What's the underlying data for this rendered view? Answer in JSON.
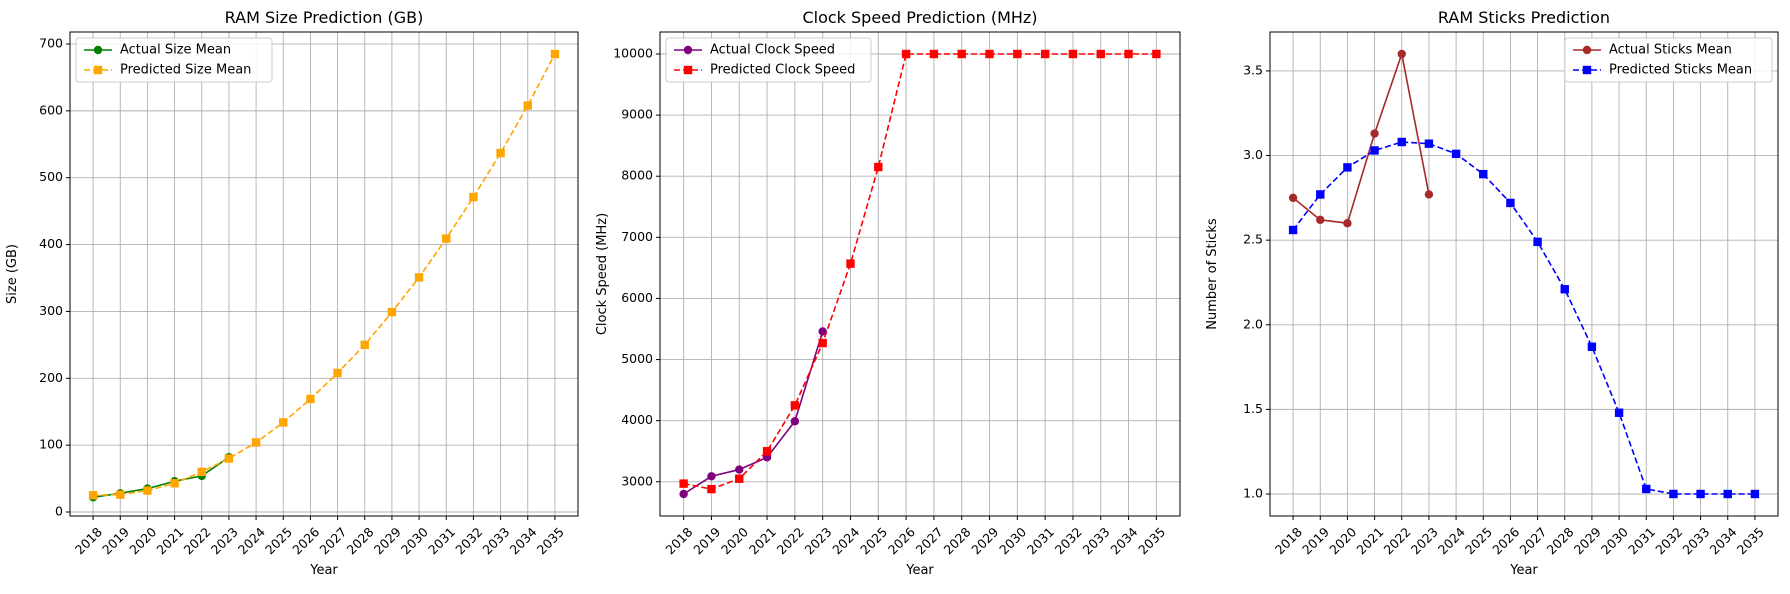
{
  "chart_data": [
    {
      "type": "line",
      "title": "RAM Size Prediction (GB)",
      "xlabel": "Year",
      "ylabel": "Size (GB)",
      "x_ticks": [
        2018,
        2019,
        2020,
        2021,
        2022,
        2023,
        2024,
        2025,
        2026,
        2027,
        2028,
        2029,
        2030,
        2031,
        2032,
        2033,
        2034,
        2035
      ],
      "y_ticks": [
        0,
        100,
        200,
        300,
        400,
        500,
        600,
        700
      ],
      "xlim": [
        2017.15,
        2035.85
      ],
      "ylim": [
        -6,
        718
      ],
      "grid": true,
      "legend_position": "upper-left",
      "series": [
        {
          "name": "Actual Size Mean",
          "color": "#008000",
          "linestyle": "solid",
          "marker": "circle",
          "x": [
            2018,
            2019,
            2020,
            2021,
            2022,
            2023
          ],
          "y": [
            22,
            28,
            35,
            46,
            54,
            82
          ]
        },
        {
          "name": "Predicted Size Mean",
          "color": "#FFA500",
          "linestyle": "dashed",
          "marker": "square",
          "x": [
            2018,
            2019,
            2020,
            2021,
            2022,
            2023,
            2024,
            2025,
            2026,
            2027,
            2028,
            2029,
            2030,
            2031,
            2032,
            2033,
            2034,
            2035
          ],
          "y": [
            25,
            26,
            32,
            43,
            60,
            80,
            104,
            134,
            169,
            208,
            250,
            299,
            351,
            409,
            471,
            537,
            608,
            685
          ]
        }
      ]
    },
    {
      "type": "line",
      "title": "Clock Speed Prediction (MHz)",
      "xlabel": "Year",
      "ylabel": "Clock Speed (MHz)",
      "x_ticks": [
        2018,
        2019,
        2020,
        2021,
        2022,
        2023,
        2024,
        2025,
        2026,
        2027,
        2028,
        2029,
        2030,
        2031,
        2032,
        2033,
        2034,
        2035
      ],
      "y_ticks": [
        3000,
        4000,
        5000,
        6000,
        7000,
        8000,
        9000,
        10000
      ],
      "xlim": [
        2017.15,
        2035.85
      ],
      "ylim": [
        2440,
        10360
      ],
      "grid": true,
      "legend_position": "upper-left",
      "series": [
        {
          "name": "Actual Clock Speed",
          "color": "#800080",
          "linestyle": "solid",
          "marker": "circle",
          "x": [
            2018,
            2019,
            2020,
            2021,
            2022,
            2023
          ],
          "y": [
            2800,
            3090,
            3200,
            3400,
            3990,
            5460
          ]
        },
        {
          "name": "Predicted Clock Speed",
          "color": "#FF0000",
          "linestyle": "dashed",
          "marker": "square",
          "x": [
            2018,
            2019,
            2020,
            2021,
            2022,
            2023,
            2024,
            2025,
            2026,
            2027,
            2028,
            2029,
            2030,
            2031,
            2032,
            2033,
            2034,
            2035
          ],
          "y": [
            2970,
            2880,
            3050,
            3500,
            4250,
            5270,
            6570,
            8150,
            10000,
            10000,
            10000,
            10000,
            10000,
            10000,
            10000,
            10000,
            10000,
            10000
          ]
        }
      ]
    },
    {
      "type": "line",
      "title": "RAM Sticks Prediction",
      "xlabel": "Year",
      "ylabel": "Number of Sticks",
      "x_ticks": [
        2018,
        2019,
        2020,
        2021,
        2022,
        2023,
        2024,
        2025,
        2026,
        2027,
        2028,
        2029,
        2030,
        2031,
        2032,
        2033,
        2034,
        2035
      ],
      "y_ticks": [
        1.0,
        1.5,
        2.0,
        2.5,
        3.0,
        3.5
      ],
      "y_tick_labels": [
        "1.0",
        "1.5",
        "2.0",
        "2.5",
        "3.0",
        "3.5"
      ],
      "xlim": [
        2017.15,
        2035.85
      ],
      "ylim": [
        0.87,
        3.73
      ],
      "grid": true,
      "legend_position": "upper-right",
      "series": [
        {
          "name": "Actual Sticks Mean",
          "color": "#A52A2A",
          "linestyle": "solid",
          "marker": "circle",
          "x": [
            2018,
            2019,
            2020,
            2021,
            2022,
            2023
          ],
          "y": [
            2.75,
            2.62,
            2.6,
            3.13,
            3.6,
            2.77
          ]
        },
        {
          "name": "Predicted Sticks Mean",
          "color": "#0000FF",
          "linestyle": "dashed",
          "marker": "square",
          "x": [
            2018,
            2019,
            2020,
            2021,
            2022,
            2023,
            2024,
            2025,
            2026,
            2027,
            2028,
            2029,
            2030,
            2031,
            2032,
            2033,
            2034,
            2035
          ],
          "y": [
            2.56,
            2.77,
            2.93,
            3.03,
            3.08,
            3.07,
            3.01,
            2.89,
            2.72,
            2.49,
            2.21,
            1.87,
            1.48,
            1.03,
            1.0,
            1.0,
            1.0,
            1.0
          ]
        }
      ]
    }
  ]
}
